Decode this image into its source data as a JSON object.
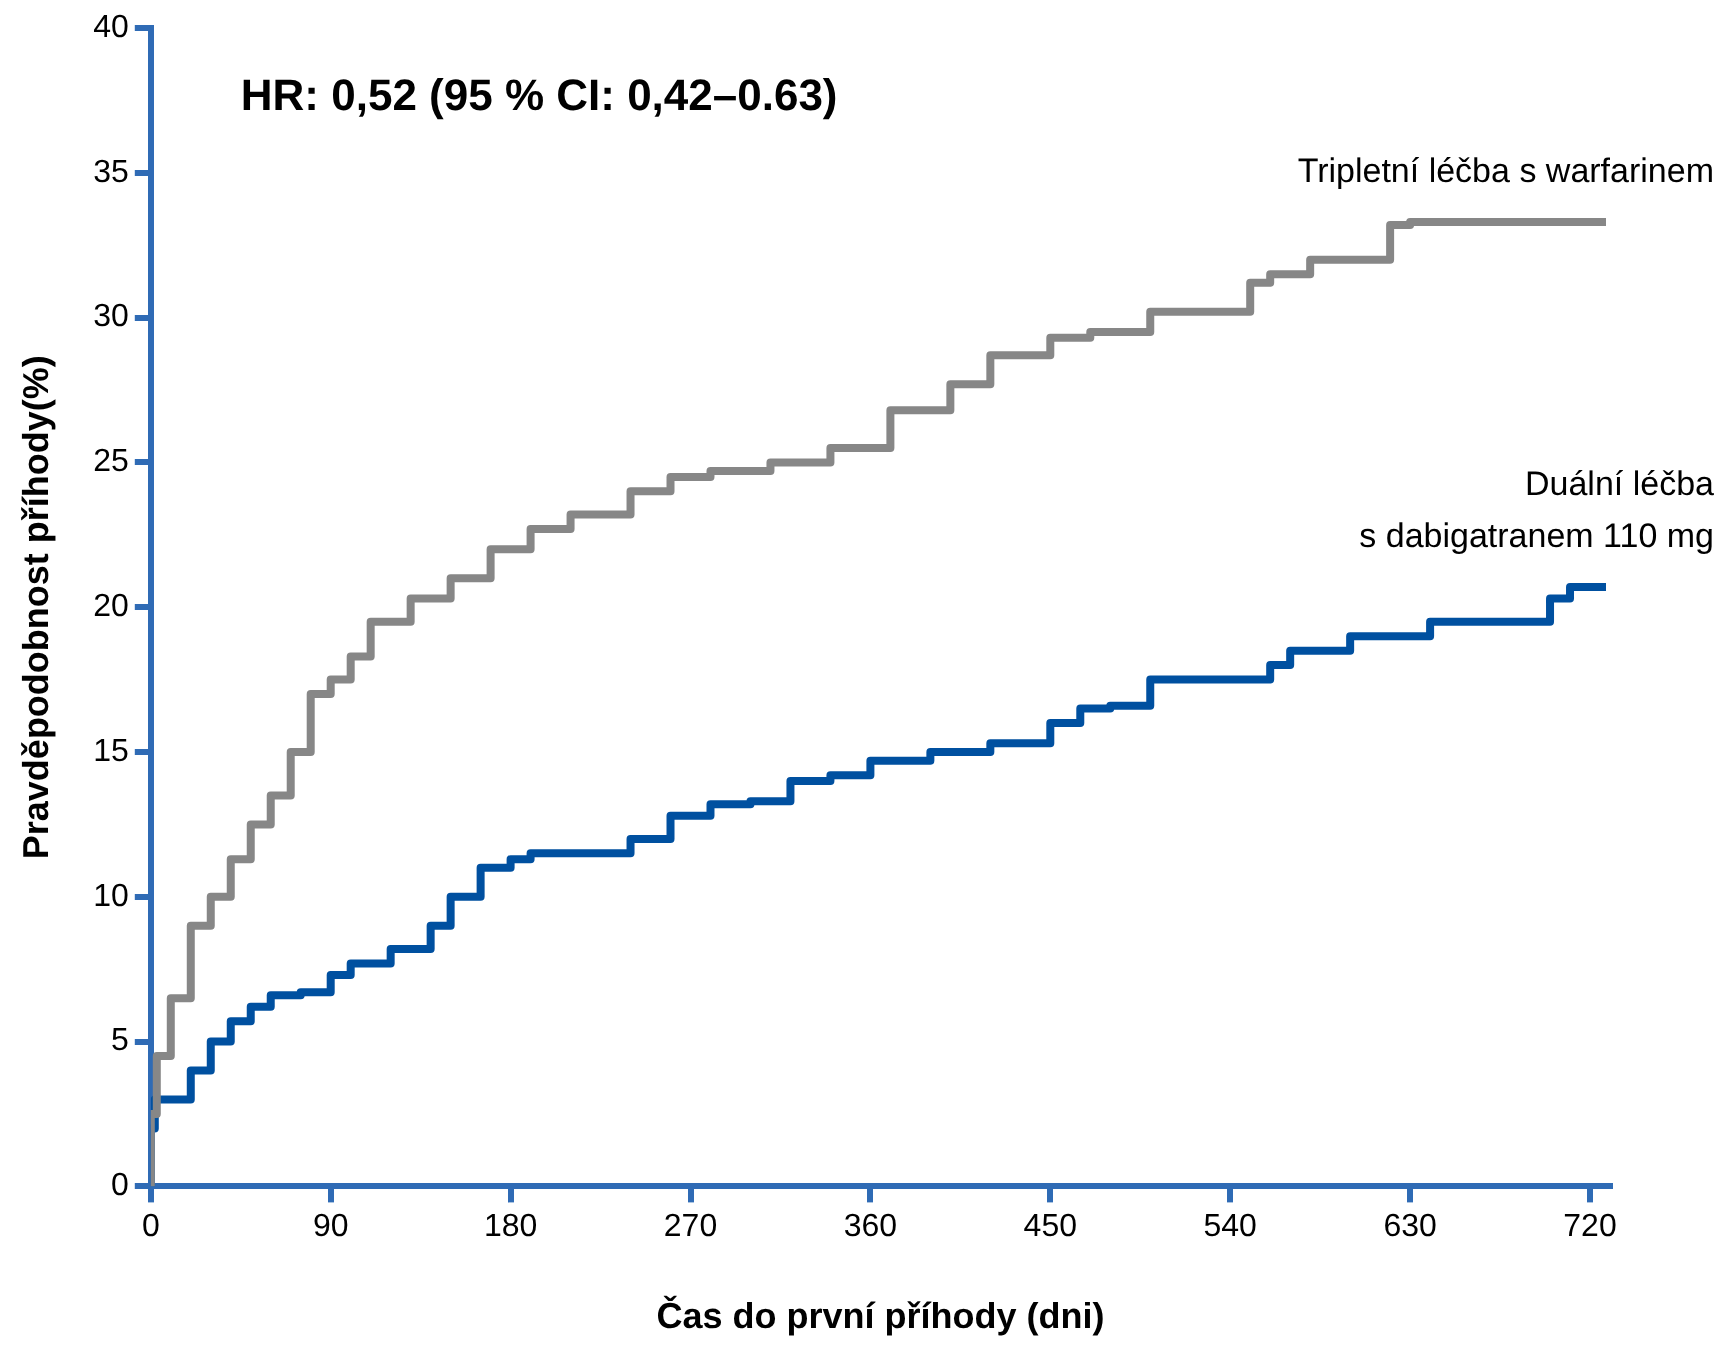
{
  "chart_data": {
    "type": "step",
    "xlabel": "Čas do první příhody (dni)",
    "ylabel": "Pravděpodobnost příhody(%)",
    "annotations": [
      "HR: 0,52 (95 % CI: 0,42–0.63)"
    ],
    "xlim": [
      0,
      730
    ],
    "xticks": [
      0,
      90,
      180,
      270,
      360,
      450,
      540,
      630,
      720
    ],
    "ylim": [
      0,
      40
    ],
    "yticks": [
      0,
      5,
      10,
      15,
      20,
      25,
      30,
      35,
      40
    ],
    "grid": false,
    "series": [
      {
        "name": "Tripletní léčba s warfarinem",
        "color": "#878787",
        "x": [
          0,
          3,
          10,
          20,
          30,
          40,
          50,
          60,
          70,
          80,
          90,
          100,
          110,
          130,
          150,
          170,
          190,
          210,
          240,
          260,
          280,
          310,
          340,
          370,
          400,
          420,
          450,
          470,
          500,
          520,
          550,
          560,
          580,
          600,
          620,
          630,
          700,
          728
        ],
        "values": [
          0,
          2.5,
          4.5,
          6.5,
          9,
          10,
          11.3,
          12.5,
          13.5,
          15,
          17,
          17.5,
          18.3,
          19.5,
          20.3,
          21,
          22,
          22.7,
          23.2,
          24,
          24.5,
          24.7,
          25,
          25.5,
          26.8,
          27.7,
          28.7,
          29.3,
          29.5,
          30.2,
          30.2,
          31.2,
          31.5,
          32,
          32,
          33.2,
          33.3,
          33.3
        ]
      },
      {
        "name": "Duální léčba\ns dabigatranem 110 mg",
        "color": "#0050a0",
        "x": [
          0,
          2,
          5,
          20,
          30,
          40,
          50,
          60,
          75,
          90,
          100,
          120,
          140,
          150,
          165,
          180,
          190,
          220,
          240,
          260,
          280,
          300,
          320,
          340,
          360,
          390,
          420,
          450,
          465,
          480,
          500,
          520,
          560,
          570,
          600,
          640,
          660,
          700,
          710,
          728
        ],
        "values": [
          0,
          2,
          3,
          3,
          4,
          5,
          5.7,
          6.2,
          6.6,
          6.7,
          7.3,
          7.7,
          8.2,
          9,
          10,
          11,
          11.3,
          11.5,
          11.5,
          12,
          12.8,
          13.2,
          13.3,
          14,
          14.2,
          14.7,
          15,
          15.3,
          16,
          16.5,
          16.6,
          17.5,
          17.5,
          18,
          18.5,
          19,
          19.5,
          19.5,
          20.3,
          20.7
        ]
      }
    ]
  }
}
